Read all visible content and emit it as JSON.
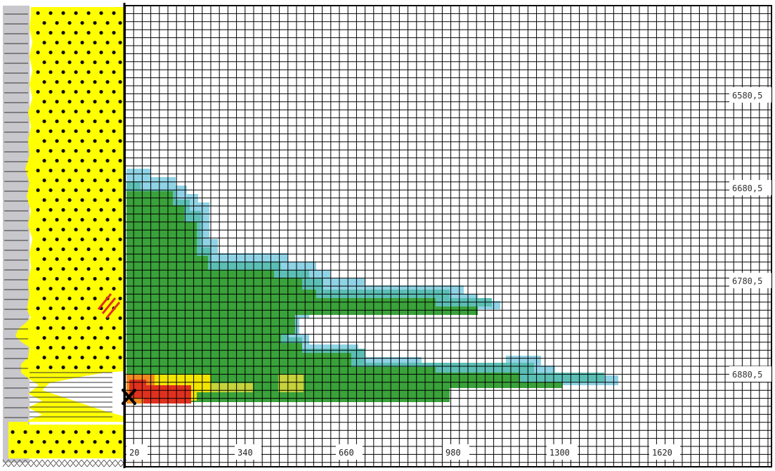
{
  "x_axis": {
    "tick_labels": [
      "20",
      "340",
      "660",
      "980",
      "1300",
      "1620"
    ]
  },
  "depth_axis": {
    "labels": [
      "6580,5",
      "6680,5",
      "6780,5",
      "6880,5"
    ]
  },
  "legend_colors": {
    "sand": "#ffff00",
    "shale": "#c8c8cc",
    "light_blue": "#8fd3e6",
    "teal": "#5bbfb5",
    "green": "#3aa23a",
    "yellow_green": "#c6d33a",
    "yellow": "#f2e600",
    "orange": "#f28a1e",
    "red": "#e0301e",
    "grid_line": "#000000",
    "well_marker": "#000000"
  },
  "well_marker_icon": "x-mark-icon"
}
